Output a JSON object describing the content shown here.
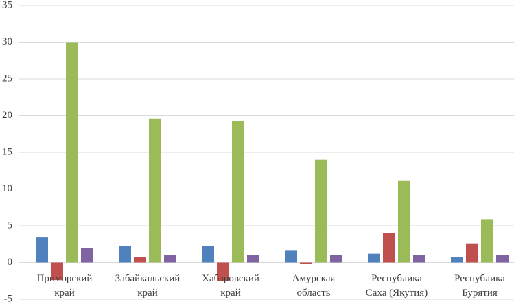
{
  "chart_data": {
    "type": "bar",
    "categories": [
      [
        "Приморский",
        "край"
      ],
      [
        "Забайкальский",
        "край"
      ],
      [
        "Хабаровский",
        "край"
      ],
      [
        "Амурская",
        "область"
      ],
      [
        "Республика",
        "Саха (Якутия)"
      ],
      [
        "Республика",
        "Бурятия"
      ]
    ],
    "series": [
      {
        "color": "#4f81bd",
        "values": [
          3.4,
          2.2,
          2.2,
          1.6,
          1.2,
          0.7
        ]
      },
      {
        "color": "#c0504d",
        "values": [
          -2.4,
          0.7,
          -2.5,
          -0.2,
          4.0,
          2.6
        ]
      },
      {
        "color": "#9bbb59",
        "values": [
          30,
          19.6,
          19.3,
          14.0,
          11.1,
          5.9
        ]
      },
      {
        "color": "#8064a2",
        "values": [
          2.0,
          1.0,
          1.0,
          1.0,
          1.0,
          1.0
        ]
      }
    ],
    "ylim": [
      -5,
      35
    ],
    "yticks": [
      -5,
      0,
      5,
      10,
      15,
      20,
      25,
      30,
      35
    ],
    "grid": true
  }
}
